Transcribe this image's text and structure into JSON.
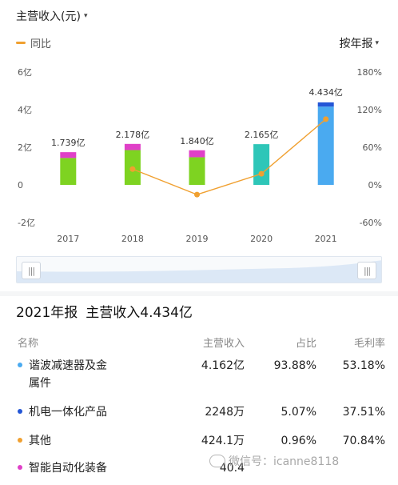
{
  "header": {
    "title": "主营收入(元)",
    "caret": "▾"
  },
  "legend": {
    "label": "同比",
    "color": "#f0a030"
  },
  "period": {
    "label": "按年报",
    "caret": "▾"
  },
  "chart_data": {
    "type": "bar",
    "categories": [
      "2017",
      "2018",
      "2019",
      "2020",
      "2021"
    ],
    "bar_labels": [
      "1.739亿",
      "2.178亿",
      "1.840亿",
      "2.165亿",
      "4.434亿"
    ],
    "totals": [
      1.739,
      2.178,
      1.84,
      2.165,
      4.434
    ],
    "stacks": [
      {
        "color": "#7ed321",
        "values": [
          1.43,
          1.85,
          1.47,
          0,
          0
        ]
      },
      {
        "color": "#e040c8",
        "values": [
          0.309,
          0.328,
          0.37,
          0,
          0
        ]
      },
      {
        "color": "#2ec6b8",
        "values": [
          0,
          0,
          0,
          2.165,
          0
        ]
      },
      {
        "color": "#4aaaf0",
        "values": [
          0,
          0,
          0,
          0,
          4.162
        ]
      },
      {
        "color": "#2456d6",
        "values": [
          0,
          0,
          0,
          0,
          0.2248
        ]
      }
    ],
    "yoy": {
      "color": "#f0a030",
      "values": [
        null,
        25.2,
        -15.5,
        17.7,
        104.8
      ]
    },
    "y_left": {
      "ylim": [
        -2,
        6
      ],
      "ticks": [
        -2,
        0,
        2,
        4,
        6
      ],
      "tick_labels": [
        "-2亿",
        "0",
        "2亿",
        "4亿",
        "6亿"
      ]
    },
    "y_right": {
      "ylim": [
        -60,
        180
      ],
      "ticks": [
        -60,
        0,
        60,
        120,
        180
      ],
      "tick_labels": [
        "-60%",
        "0%",
        "60%",
        "120%",
        "180%"
      ]
    },
    "grid": false
  },
  "summary": {
    "period": "2021年报",
    "text": "主营收入4.434亿"
  },
  "table": {
    "headers": {
      "name": "名称",
      "revenue": "主营收入",
      "share": "占比",
      "margin": "毛利率"
    },
    "rows": [
      {
        "name": "谐波减速器及金",
        "name2": "属件",
        "revenue": "4.162亿",
        "share": "93.88%",
        "margin": "53.18%",
        "color": "#4aaaf0"
      },
      {
        "name": "机电一体化产品",
        "name2": "",
        "revenue": "2248万",
        "share": "5.07%",
        "margin": "37.51%",
        "color": "#2456d6"
      },
      {
        "name": "其他",
        "name2": "",
        "revenue": "424.1万",
        "share": "0.96%",
        "margin": "70.84%",
        "color": "#f0a030"
      },
      {
        "name": "智能自动化装备",
        "name2": "",
        "revenue": "40.4",
        "share": "",
        "margin": "",
        "color": "#e040c8"
      }
    ]
  },
  "watermark": {
    "text": "微信号：icanne8118"
  }
}
